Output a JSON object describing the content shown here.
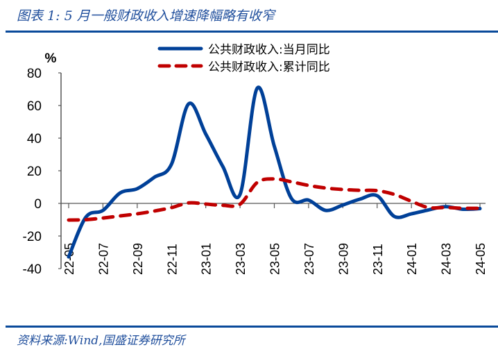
{
  "header": {
    "title": "图表 1:  5 月一般财政收入增速降幅略有收窄"
  },
  "footer": {
    "source": "资料来源:Wind,国盛证券研究所"
  },
  "chart_data": {
    "type": "line",
    "title": "",
    "unit_label": "%",
    "ylim": [
      -40,
      80
    ],
    "yticks": [
      80,
      60,
      40,
      20,
      0,
      -20,
      -40
    ],
    "x": [
      "22-05",
      "22-06",
      "22-07",
      "22-08",
      "22-09",
      "22-10",
      "22-11",
      "22-12",
      "23-01",
      "23-02",
      "23-03",
      "23-04",
      "23-05",
      "23-06",
      "23-07",
      "23-08",
      "23-09",
      "23-10",
      "23-11",
      "23-12",
      "24-01",
      "24-02",
      "24-03",
      "24-04",
      "24-05"
    ],
    "xtick_labels": [
      "22-05",
      "22-07",
      "22-09",
      "22-11",
      "23-01",
      "23-03",
      "23-05",
      "23-07",
      "23-09",
      "23-11",
      "24-01",
      "24-03",
      "24-05"
    ],
    "legend_placement": "top",
    "grid": false,
    "series": [
      {
        "name": "公共财政收入:当月同比",
        "color": "#004098",
        "style": "solid",
        "values": [
          -32.8,
          -8.5,
          -4.3,
          6.4,
          9,
          16,
          24,
          61,
          42.5,
          22.5,
          5.5,
          70.6,
          35,
          3,
          2,
          -4.3,
          -1,
          2.6,
          4.7,
          -8,
          -6.4,
          -4,
          -2,
          -3.6,
          -3.2
        ]
      },
      {
        "name": "公共财政收入:累计同比",
        "color": "#c00000",
        "style": "dashed",
        "values": [
          -10.2,
          -10,
          -9,
          -7.7,
          -6.4,
          -4.7,
          -2.6,
          0.3,
          -0.4,
          -1.2,
          -0.5,
          12.8,
          15,
          13.2,
          11,
          9.4,
          8.5,
          8,
          7.8,
          5.5,
          1.3,
          -2.6,
          -2.5,
          -3,
          -3
        ]
      }
    ]
  }
}
